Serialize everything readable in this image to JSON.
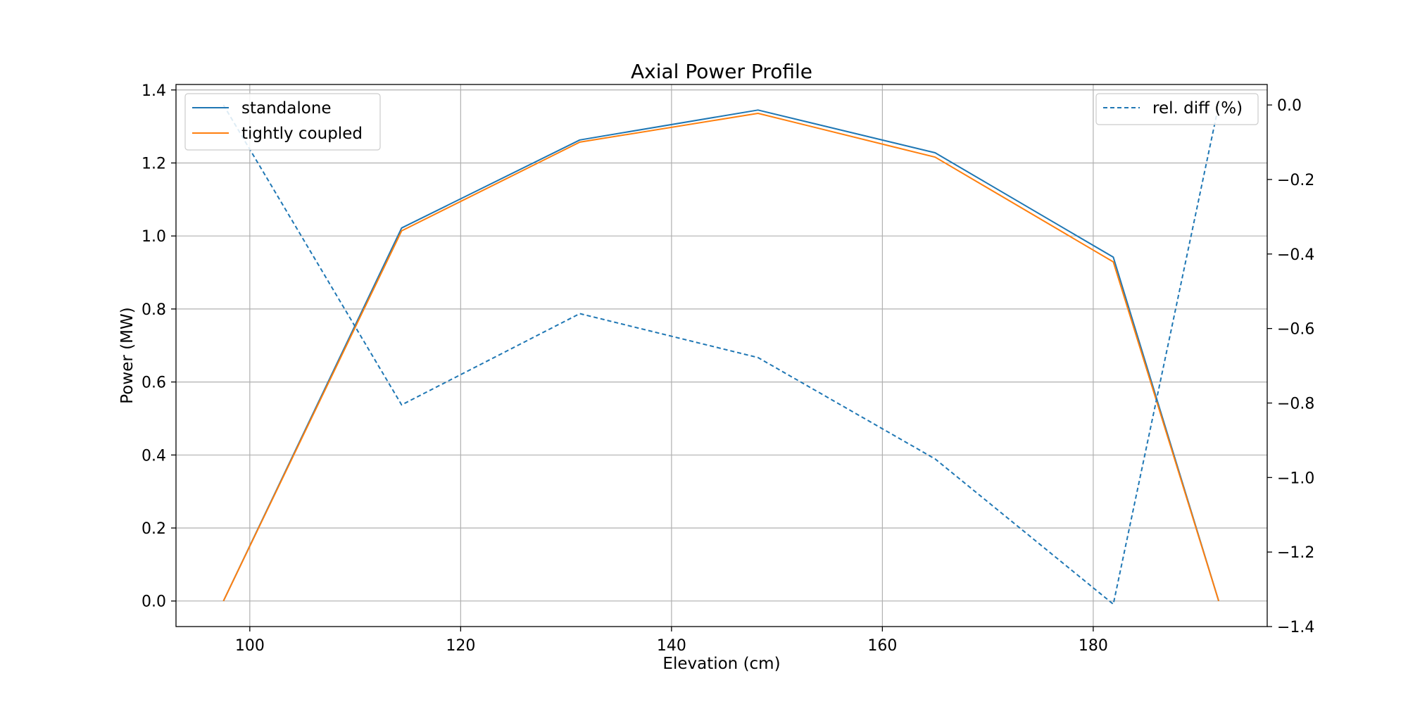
{
  "chart_data": {
    "type": "line",
    "title": "Axial Power Profile",
    "xlabel": "Elevation (cm)",
    "ylabel": "Power (MW)",
    "y2label": "",
    "xlim": [
      93.0,
      196.5
    ],
    "ylim": [
      -0.07,
      1.415
    ],
    "y2lim": [
      -1.4,
      0.055
    ],
    "xticks": [
      100,
      120,
      140,
      160,
      180
    ],
    "yticks": [
      0.0,
      0.2,
      0.4,
      0.6,
      0.8,
      1.0,
      1.2,
      1.4
    ],
    "y2ticks": [
      0.0,
      -0.2,
      -0.4,
      -0.6,
      -0.8,
      -1.0,
      -1.2,
      -1.4
    ],
    "grid": true,
    "x": [
      97.5,
      114.4,
      131.3,
      148.2,
      165.0,
      181.9,
      191.9
    ],
    "series": [
      {
        "name": "standalone",
        "axis": "left",
        "style": "solid",
        "color": "#1f77b4",
        "values": [
          0.0,
          1.022,
          1.263,
          1.345,
          1.228,
          0.942,
          0.0
        ]
      },
      {
        "name": "tightly coupled",
        "axis": "left",
        "style": "solid",
        "color": "#ff7f0e",
        "values": [
          0.0,
          1.014,
          1.257,
          1.336,
          1.216,
          0.929,
          0.0
        ]
      },
      {
        "name": "rel. diff (%)",
        "axis": "right",
        "style": "dashed",
        "color": "#1f77b4",
        "values": [
          0.0,
          -0.805,
          -0.56,
          -0.678,
          -0.95,
          -1.34,
          0.0
        ]
      }
    ],
    "legend_left": {
      "placement": "upper-left",
      "entries": [
        "standalone",
        "tightly coupled"
      ]
    },
    "legend_right": {
      "placement": "upper-right",
      "entries": [
        "rel. diff (%)"
      ]
    }
  }
}
